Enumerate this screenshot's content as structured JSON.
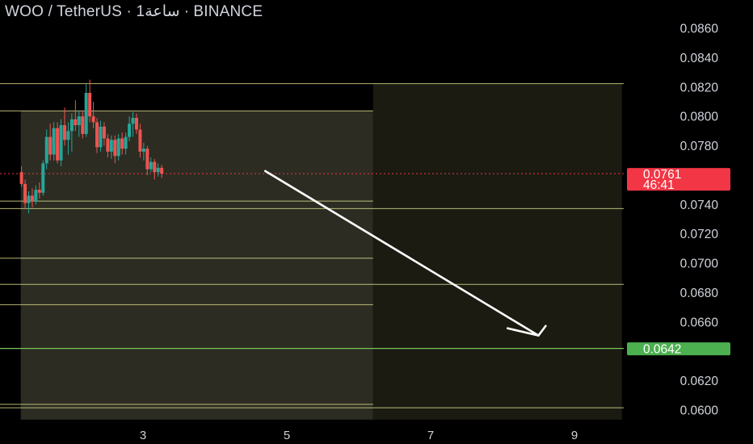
{
  "header": {
    "title": "WOO / TetherUS · 1ساعة · BINANCE"
  },
  "colors": {
    "background": "#000000",
    "zone_fill": "#2c2c22",
    "zone_fill_right": "#1b1b12",
    "level_line": "#d6d68a",
    "support_line": "#7bc45a",
    "bull_candle": "#26a69a",
    "bear_candle": "#ef5350",
    "price_tag": "#f23645",
    "target_tag": "#4caf50",
    "arrow": "#ffffff"
  },
  "chart_data": {
    "type": "candlestick",
    "ylim": [
      0.0592,
      0.087
    ],
    "xlim": [
      1.3,
      10.0
    ],
    "y_ticks": [
      "0.0860",
      "0.0840",
      "0.0820",
      "0.0800",
      "0.0780",
      "0.0740",
      "0.0720",
      "0.0700",
      "0.0680",
      "0.0660",
      "0.0620",
      "0.0600"
    ],
    "x_ticks": [
      {
        "value": 3,
        "label": "3"
      },
      {
        "value": 5,
        "label": "5"
      },
      {
        "value": 7,
        "label": "7"
      },
      {
        "value": 9,
        "label": "9"
      }
    ],
    "current_price": {
      "value": 0.0761,
      "label": "0.0761",
      "countdown": "46:41"
    },
    "target_price": {
      "value": 0.0642,
      "label": "0.0642"
    },
    "levels_full": [
      0.08223,
      0.07372,
      0.06856,
      0.06016
    ],
    "levels_partial": [
      0.08037,
      0.07423,
      0.07034,
      0.06718,
      0.06039
    ],
    "zone_left": {
      "x1": 1.3,
      "x2": 6.2,
      "y_top": 0.08037,
      "y_bottom": 0.05935
    },
    "zone_right": {
      "x1": 6.2,
      "x2": 9.66,
      "y_top": 0.08223,
      "y_bottom": 0.05935
    },
    "arrow": {
      "from": [
        4.7,
        0.07628
      ],
      "to": [
        8.5,
        0.06508
      ],
      "head_wing1": [
        8.07,
        0.06557
      ],
      "head_wing2": [
        8.6,
        0.06573
      ]
    },
    "candles": [
      {
        "x": 1.31,
        "o": 0.0762,
        "h": 0.0766,
        "l": 0.0752,
        "c": 0.0754
      },
      {
        "x": 1.36,
        "o": 0.0754,
        "h": 0.0757,
        "l": 0.0737,
        "c": 0.0741
      },
      {
        "x": 1.41,
        "o": 0.0741,
        "h": 0.0749,
        "l": 0.0734,
        "c": 0.0746
      },
      {
        "x": 1.46,
        "o": 0.0746,
        "h": 0.0751,
        "l": 0.0738,
        "c": 0.0742
      },
      {
        "x": 1.51,
        "o": 0.0742,
        "h": 0.0753,
        "l": 0.074,
        "c": 0.075
      },
      {
        "x": 1.56,
        "o": 0.075,
        "h": 0.0755,
        "l": 0.0744,
        "c": 0.0748
      },
      {
        "x": 1.61,
        "o": 0.0748,
        "h": 0.077,
        "l": 0.0746,
        "c": 0.0768
      },
      {
        "x": 1.66,
        "o": 0.0768,
        "h": 0.0791,
        "l": 0.0764,
        "c": 0.0786
      },
      {
        "x": 1.71,
        "o": 0.0786,
        "h": 0.0795,
        "l": 0.077,
        "c": 0.0774
      },
      {
        "x": 1.76,
        "o": 0.0774,
        "h": 0.0796,
        "l": 0.077,
        "c": 0.0792
      },
      {
        "x": 1.81,
        "o": 0.0792,
        "h": 0.0796,
        "l": 0.0768,
        "c": 0.077
      },
      {
        "x": 1.86,
        "o": 0.077,
        "h": 0.0798,
        "l": 0.0766,
        "c": 0.0794
      },
      {
        "x": 1.91,
        "o": 0.0794,
        "h": 0.0806,
        "l": 0.078,
        "c": 0.0784
      },
      {
        "x": 1.96,
        "o": 0.0784,
        "h": 0.0796,
        "l": 0.0774,
        "c": 0.079
      },
      {
        "x": 2.01,
        "o": 0.079,
        "h": 0.0802,
        "l": 0.0776,
        "c": 0.0798
      },
      {
        "x": 2.06,
        "o": 0.0798,
        "h": 0.0811,
        "l": 0.079,
        "c": 0.0794
      },
      {
        "x": 2.11,
        "o": 0.0794,
        "h": 0.0804,
        "l": 0.0786,
        "c": 0.08
      },
      {
        "x": 2.16,
        "o": 0.08,
        "h": 0.0804,
        "l": 0.0785,
        "c": 0.0788
      },
      {
        "x": 2.21,
        "o": 0.0788,
        "h": 0.0822,
        "l": 0.0786,
        "c": 0.0816
      },
      {
        "x": 2.26,
        "o": 0.0816,
        "h": 0.0825,
        "l": 0.0796,
        "c": 0.08
      },
      {
        "x": 2.31,
        "o": 0.08,
        "h": 0.081,
        "l": 0.0792,
        "c": 0.0796
      },
      {
        "x": 2.36,
        "o": 0.0796,
        "h": 0.0799,
        "l": 0.0775,
        "c": 0.0779
      },
      {
        "x": 2.41,
        "o": 0.0779,
        "h": 0.0797,
        "l": 0.0776,
        "c": 0.0793
      },
      {
        "x": 2.46,
        "o": 0.0793,
        "h": 0.0796,
        "l": 0.078,
        "c": 0.0785
      },
      {
        "x": 2.51,
        "o": 0.0785,
        "h": 0.0788,
        "l": 0.0772,
        "c": 0.0776
      },
      {
        "x": 2.56,
        "o": 0.0776,
        "h": 0.0787,
        "l": 0.0771,
        "c": 0.0784
      },
      {
        "x": 2.61,
        "o": 0.0784,
        "h": 0.0787,
        "l": 0.0768,
        "c": 0.0773
      },
      {
        "x": 2.66,
        "o": 0.0773,
        "h": 0.0788,
        "l": 0.077,
        "c": 0.0785
      },
      {
        "x": 2.71,
        "o": 0.0785,
        "h": 0.0789,
        "l": 0.0774,
        "c": 0.0778
      },
      {
        "x": 2.76,
        "o": 0.0778,
        "h": 0.0789,
        "l": 0.0774,
        "c": 0.0786
      },
      {
        "x": 2.81,
        "o": 0.0786,
        "h": 0.08,
        "l": 0.0783,
        "c": 0.0795
      },
      {
        "x": 2.86,
        "o": 0.0795,
        "h": 0.0803,
        "l": 0.0786,
        "c": 0.0799
      },
      {
        "x": 2.91,
        "o": 0.0799,
        "h": 0.0802,
        "l": 0.0788,
        "c": 0.0791
      },
      {
        "x": 2.96,
        "o": 0.0791,
        "h": 0.0795,
        "l": 0.0772,
        "c": 0.0776
      },
      {
        "x": 3.01,
        "o": 0.0776,
        "h": 0.0782,
        "l": 0.077,
        "c": 0.0778
      },
      {
        "x": 3.06,
        "o": 0.0778,
        "h": 0.078,
        "l": 0.076,
        "c": 0.0764
      },
      {
        "x": 3.11,
        "o": 0.0764,
        "h": 0.0772,
        "l": 0.0762,
        "c": 0.0769
      },
      {
        "x": 3.16,
        "o": 0.0769,
        "h": 0.0771,
        "l": 0.0757,
        "c": 0.0762
      },
      {
        "x": 3.21,
        "o": 0.0762,
        "h": 0.0768,
        "l": 0.0759,
        "c": 0.0765
      },
      {
        "x": 3.26,
        "o": 0.0765,
        "h": 0.0767,
        "l": 0.0758,
        "c": 0.0761
      }
    ]
  }
}
